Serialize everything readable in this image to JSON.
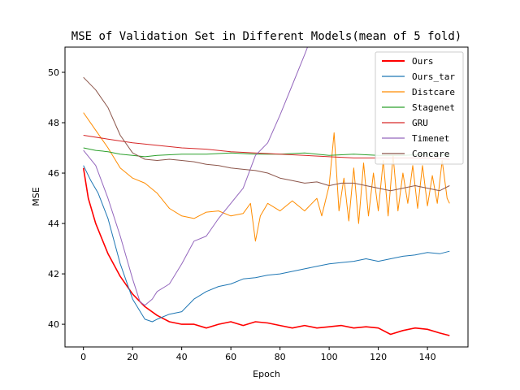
{
  "chart_data": {
    "type": "line",
    "title": "MSE of Validation Set in Different Models(mean of 5 fold)",
    "xlabel": "Epoch",
    "ylabel": "MSE",
    "xlim": [
      -7.5,
      156.5
    ],
    "ylim": [
      39.1,
      51.0
    ],
    "xticks": [
      0,
      20,
      40,
      60,
      80,
      100,
      120,
      140
    ],
    "yticks": [
      40,
      42,
      44,
      46,
      48,
      50
    ],
    "legend_position": "top-right",
    "series": [
      {
        "name": "Ours",
        "color": "#ff0000",
        "points": [
          [
            0,
            46.2
          ],
          [
            2,
            45.0
          ],
          [
            5,
            44.0
          ],
          [
            10,
            42.8
          ],
          [
            15,
            41.9
          ],
          [
            20,
            41.2
          ],
          [
            25,
            40.7
          ],
          [
            30,
            40.35
          ],
          [
            35,
            40.1
          ],
          [
            40,
            40.0
          ],
          [
            45,
            40.0
          ],
          [
            50,
            39.85
          ],
          [
            55,
            40.0
          ],
          [
            60,
            40.1
          ],
          [
            65,
            39.95
          ],
          [
            70,
            40.1
          ],
          [
            75,
            40.05
          ],
          [
            80,
            39.95
          ],
          [
            85,
            39.85
          ],
          [
            90,
            39.95
          ],
          [
            95,
            39.85
          ],
          [
            100,
            39.9
          ],
          [
            105,
            39.95
          ],
          [
            110,
            39.85
          ],
          [
            115,
            39.9
          ],
          [
            120,
            39.85
          ],
          [
            125,
            39.6
          ],
          [
            130,
            39.75
          ],
          [
            135,
            39.85
          ],
          [
            140,
            39.8
          ],
          [
            145,
            39.65
          ],
          [
            149,
            39.55
          ]
        ]
      },
      {
        "name": "Ours_tar",
        "color": "#1f77b4",
        "points": [
          [
            0,
            46.3
          ],
          [
            3,
            45.7
          ],
          [
            6,
            45.2
          ],
          [
            10,
            44.2
          ],
          [
            15,
            42.4
          ],
          [
            20,
            41.0
          ],
          [
            25,
            40.2
          ],
          [
            28,
            40.1
          ],
          [
            30,
            40.2
          ],
          [
            35,
            40.4
          ],
          [
            40,
            40.5
          ],
          [
            45,
            41.0
          ],
          [
            50,
            41.3
          ],
          [
            55,
            41.5
          ],
          [
            60,
            41.6
          ],
          [
            65,
            41.8
          ],
          [
            70,
            41.85
          ],
          [
            75,
            41.95
          ],
          [
            80,
            42.0
          ],
          [
            85,
            42.1
          ],
          [
            90,
            42.2
          ],
          [
            95,
            42.3
          ],
          [
            100,
            42.4
          ],
          [
            105,
            42.45
          ],
          [
            110,
            42.5
          ],
          [
            115,
            42.6
          ],
          [
            120,
            42.5
          ],
          [
            125,
            42.6
          ],
          [
            130,
            42.7
          ],
          [
            135,
            42.75
          ],
          [
            140,
            42.85
          ],
          [
            145,
            42.8
          ],
          [
            149,
            42.9
          ]
        ]
      },
      {
        "name": "Distcare",
        "color": "#ff8c00",
        "points": [
          [
            0,
            48.4
          ],
          [
            5,
            47.7
          ],
          [
            10,
            47.0
          ],
          [
            15,
            46.2
          ],
          [
            20,
            45.8
          ],
          [
            25,
            45.6
          ],
          [
            30,
            45.2
          ],
          [
            35,
            44.6
          ],
          [
            40,
            44.3
          ],
          [
            45,
            44.2
          ],
          [
            50,
            44.45
          ],
          [
            55,
            44.5
          ],
          [
            60,
            44.3
          ],
          [
            65,
            44.4
          ],
          [
            68,
            44.8
          ],
          [
            70,
            43.3
          ],
          [
            72,
            44.3
          ],
          [
            75,
            44.8
          ],
          [
            80,
            44.5
          ],
          [
            85,
            44.9
          ],
          [
            90,
            44.5
          ],
          [
            95,
            45.0
          ],
          [
            97,
            44.3
          ],
          [
            100,
            45.5
          ],
          [
            102,
            47.6
          ],
          [
            104,
            44.5
          ],
          [
            106,
            45.8
          ],
          [
            108,
            44.1
          ],
          [
            110,
            46.2
          ],
          [
            112,
            44.0
          ],
          [
            114,
            46.4
          ],
          [
            116,
            44.3
          ],
          [
            118,
            46.0
          ],
          [
            120,
            44.5
          ],
          [
            122,
            46.5
          ],
          [
            124,
            44.3
          ],
          [
            126,
            46.7
          ],
          [
            128,
            44.5
          ],
          [
            130,
            46.0
          ],
          [
            132,
            44.8
          ],
          [
            134,
            46.3
          ],
          [
            136,
            44.6
          ],
          [
            138,
            46.3
          ],
          [
            140,
            44.7
          ],
          [
            142,
            45.9
          ],
          [
            144,
            44.8
          ],
          [
            146,
            46.5
          ],
          [
            148,
            45.0
          ],
          [
            149,
            44.8
          ]
        ]
      },
      {
        "name": "Stagenet",
        "color": "#2ca02c",
        "points": [
          [
            0,
            47.0
          ],
          [
            5,
            46.9
          ],
          [
            10,
            46.85
          ],
          [
            15,
            46.75
          ],
          [
            20,
            46.7
          ],
          [
            25,
            46.65
          ],
          [
            30,
            46.7
          ],
          [
            40,
            46.75
          ],
          [
            50,
            46.75
          ],
          [
            60,
            46.8
          ],
          [
            70,
            46.75
          ],
          [
            80,
            46.75
          ],
          [
            90,
            46.8
          ],
          [
            100,
            46.7
          ],
          [
            110,
            46.75
          ],
          [
            120,
            46.7
          ],
          [
            130,
            46.7
          ],
          [
            140,
            46.75
          ],
          [
            149,
            46.7
          ]
        ]
      },
      {
        "name": "GRU",
        "color": "#d62728",
        "points": [
          [
            0,
            47.5
          ],
          [
            10,
            47.35
          ],
          [
            20,
            47.2
          ],
          [
            30,
            47.1
          ],
          [
            40,
            47.0
          ],
          [
            50,
            46.95
          ],
          [
            60,
            46.85
          ],
          [
            70,
            46.8
          ],
          [
            80,
            46.75
          ],
          [
            90,
            46.7
          ],
          [
            100,
            46.65
          ],
          [
            110,
            46.6
          ],
          [
            120,
            46.6
          ],
          [
            130,
            46.6
          ],
          [
            140,
            46.6
          ],
          [
            149,
            46.55
          ]
        ]
      },
      {
        "name": "Timenet",
        "color": "#9467bd",
        "points": [
          [
            0,
            46.9
          ],
          [
            5,
            46.3
          ],
          [
            10,
            45.0
          ],
          [
            15,
            43.5
          ],
          [
            20,
            41.8
          ],
          [
            23,
            40.9
          ],
          [
            25,
            40.75
          ],
          [
            28,
            41.0
          ],
          [
            30,
            41.3
          ],
          [
            35,
            41.6
          ],
          [
            40,
            42.4
          ],
          [
            45,
            43.3
          ],
          [
            50,
            43.5
          ],
          [
            55,
            44.2
          ],
          [
            60,
            44.8
          ],
          [
            65,
            45.4
          ],
          [
            70,
            46.7
          ],
          [
            75,
            47.2
          ],
          [
            80,
            48.3
          ],
          [
            85,
            49.5
          ],
          [
            90,
            50.7
          ],
          [
            92,
            51.2
          ]
        ]
      },
      {
        "name": "Concare",
        "color": "#8c564b",
        "points": [
          [
            0,
            49.8
          ],
          [
            5,
            49.3
          ],
          [
            10,
            48.6
          ],
          [
            15,
            47.5
          ],
          [
            20,
            46.8
          ],
          [
            25,
            46.55
          ],
          [
            30,
            46.5
          ],
          [
            35,
            46.55
          ],
          [
            40,
            46.5
          ],
          [
            45,
            46.45
          ],
          [
            50,
            46.35
          ],
          [
            55,
            46.3
          ],
          [
            60,
            46.2
          ],
          [
            65,
            46.15
          ],
          [
            70,
            46.1
          ],
          [
            75,
            46.0
          ],
          [
            80,
            45.8
          ],
          [
            85,
            45.7
          ],
          [
            90,
            45.6
          ],
          [
            95,
            45.65
          ],
          [
            100,
            45.5
          ],
          [
            105,
            45.6
          ],
          [
            110,
            45.6
          ],
          [
            115,
            45.5
          ],
          [
            120,
            45.4
          ],
          [
            125,
            45.3
          ],
          [
            130,
            45.4
          ],
          [
            135,
            45.5
          ],
          [
            140,
            45.4
          ],
          [
            145,
            45.3
          ],
          [
            149,
            45.5
          ]
        ]
      }
    ]
  }
}
